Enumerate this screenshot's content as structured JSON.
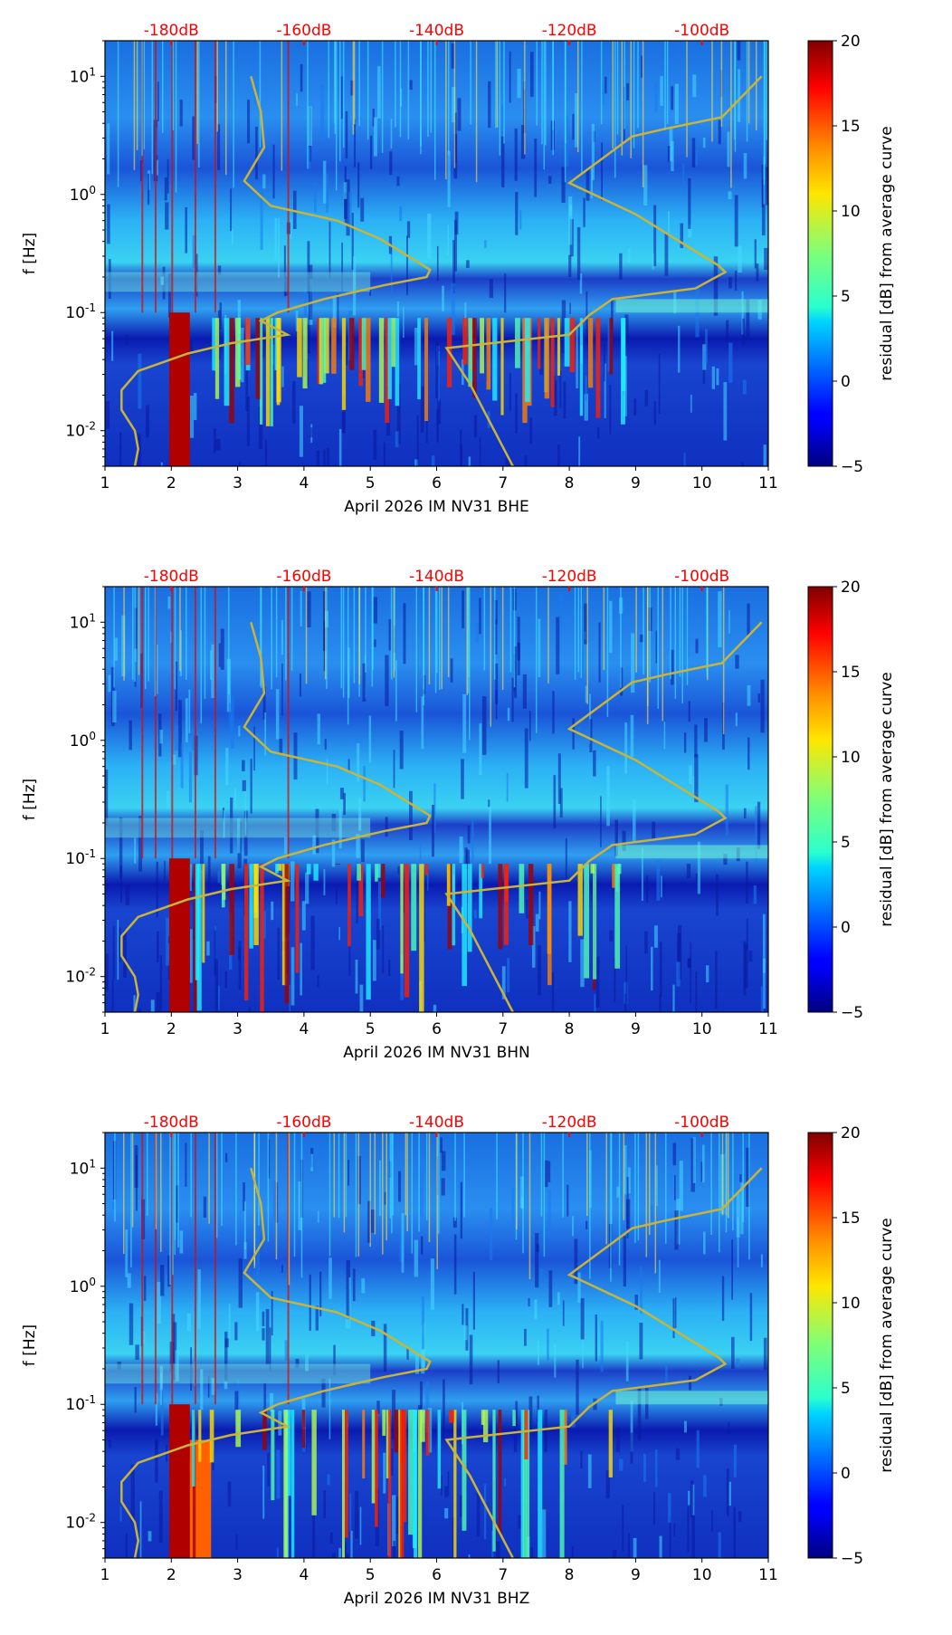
{
  "chart_data": [
    {
      "type": "heatmap",
      "title": "",
      "xlabel": "April 2026 IM NV31  BHE",
      "ylabel": "f [Hz]",
      "xlim": [
        1,
        11
      ],
      "ylim": [
        0.005,
        20
      ],
      "yscale": "log",
      "xticks": [
        "1",
        "2",
        "3",
        "4",
        "5",
        "6",
        "7",
        "8",
        "9",
        "10",
        "11"
      ],
      "yticks": [
        {
          "label": "10^1",
          "value": 10
        },
        {
          "label": "10^0",
          "value": 1
        },
        {
          "label": "10^-1",
          "value": 0.1
        },
        {
          "label": "10^-2",
          "value": 0.01
        }
      ],
      "top_axis_labels": [
        "-180dB",
        "-160dB",
        "-140dB",
        "-120dB",
        "-100dB"
      ],
      "top_axis_color": "#ff0000",
      "colorbar": {
        "label": "residual [dB] from average curve",
        "min": -5,
        "max": 20,
        "ticks": [
          "20",
          "15",
          "10",
          "5",
          "0",
          "−5"
        ],
        "colormap": "jet"
      },
      "curve_color": "#c8b43a",
      "curves": [
        {
          "name": "low-noise model",
          "points": [
            [
              3.2,
              10
            ],
            [
              3.35,
              5
            ],
            [
              3.4,
              2.5
            ],
            [
              3.1,
              1.3
            ],
            [
              3.5,
              0.8
            ],
            [
              4.5,
              0.6
            ],
            [
              5.15,
              0.42
            ],
            [
              5.9,
              0.23
            ],
            [
              5.85,
              0.2
            ],
            [
              5.2,
              0.17
            ],
            [
              4.3,
              0.13
            ],
            [
              3.6,
              0.1
            ],
            [
              3.35,
              0.085
            ],
            [
              3.75,
              0.065
            ],
            [
              2.9,
              0.055
            ],
            [
              2.25,
              0.045
            ],
            [
              1.5,
              0.032
            ],
            [
              1.25,
              0.022
            ],
            [
              1.25,
              0.015
            ],
            [
              1.45,
              0.01
            ],
            [
              1.5,
              0.007
            ],
            [
              1.45,
              0.005
            ]
          ]
        },
        {
          "name": "high-noise model",
          "points": [
            [
              10.9,
              10
            ],
            [
              10.3,
              4.5
            ],
            [
              9.45,
              3.6
            ],
            [
              8.95,
              3.1
            ],
            [
              8.0,
              1.25
            ],
            [
              9.0,
              0.68
            ],
            [
              10.25,
              0.25
            ],
            [
              10.35,
              0.22
            ],
            [
              9.9,
              0.16
            ],
            [
              8.65,
              0.13
            ],
            [
              8.3,
              0.095
            ],
            [
              8.0,
              0.065
            ],
            [
              6.15,
              0.05
            ],
            [
              6.5,
              0.025
            ],
            [
              7.15,
              0.005
            ]
          ]
        }
      ]
    },
    {
      "type": "heatmap",
      "title": "",
      "xlabel": "April 2026 IM NV31  BHN",
      "ylabel": "f [Hz]",
      "xlim": [
        1,
        11
      ],
      "ylim": [
        0.005,
        20
      ],
      "yscale": "log",
      "xticks": [
        "1",
        "2",
        "3",
        "4",
        "5",
        "6",
        "7",
        "8",
        "9",
        "10",
        "11"
      ],
      "yticks": [
        {
          "label": "10^1",
          "value": 10
        },
        {
          "label": "10^0",
          "value": 1
        },
        {
          "label": "10^-1",
          "value": 0.1
        },
        {
          "label": "10^-2",
          "value": 0.01
        }
      ],
      "top_axis_labels": [
        "-180dB",
        "-160dB",
        "-140dB",
        "-120dB",
        "-100dB"
      ],
      "top_axis_color": "#ff0000",
      "colorbar": {
        "label": "residual [dB] from average curve",
        "min": -5,
        "max": 20,
        "ticks": [
          "20",
          "15",
          "10",
          "5",
          "0",
          "−5"
        ],
        "colormap": "jet"
      },
      "curve_color": "#c8b43a",
      "curves": [
        {
          "name": "low-noise model",
          "points": [
            [
              3.2,
              10
            ],
            [
              3.35,
              5
            ],
            [
              3.4,
              2.5
            ],
            [
              3.1,
              1.3
            ],
            [
              3.5,
              0.8
            ],
            [
              4.5,
              0.6
            ],
            [
              5.15,
              0.42
            ],
            [
              5.9,
              0.23
            ],
            [
              5.85,
              0.2
            ],
            [
              5.2,
              0.17
            ],
            [
              4.3,
              0.13
            ],
            [
              3.6,
              0.1
            ],
            [
              3.35,
              0.085
            ],
            [
              3.75,
              0.065
            ],
            [
              2.9,
              0.055
            ],
            [
              2.25,
              0.045
            ],
            [
              1.5,
              0.032
            ],
            [
              1.25,
              0.022
            ],
            [
              1.25,
              0.015
            ],
            [
              1.45,
              0.01
            ],
            [
              1.5,
              0.007
            ],
            [
              1.45,
              0.005
            ]
          ]
        },
        {
          "name": "high-noise model",
          "points": [
            [
              10.9,
              10
            ],
            [
              10.3,
              4.5
            ],
            [
              9.45,
              3.6
            ],
            [
              8.95,
              3.1
            ],
            [
              8.0,
              1.25
            ],
            [
              9.0,
              0.68
            ],
            [
              10.25,
              0.25
            ],
            [
              10.35,
              0.22
            ],
            [
              9.9,
              0.16
            ],
            [
              8.65,
              0.13
            ],
            [
              8.3,
              0.095
            ],
            [
              8.0,
              0.065
            ],
            [
              6.15,
              0.05
            ],
            [
              6.5,
              0.025
            ],
            [
              7.15,
              0.005
            ]
          ]
        }
      ]
    },
    {
      "type": "heatmap",
      "title": "",
      "xlabel": "April 2026 IM NV31  BHZ",
      "ylabel": "f [Hz]",
      "xlim": [
        1,
        11
      ],
      "ylim": [
        0.005,
        20
      ],
      "yscale": "log",
      "xticks": [
        "1",
        "2",
        "3",
        "4",
        "5",
        "6",
        "7",
        "8",
        "9",
        "10",
        "11"
      ],
      "yticks": [
        {
          "label": "10^1",
          "value": 10
        },
        {
          "label": "10^0",
          "value": 1
        },
        {
          "label": "10^-1",
          "value": 0.1
        },
        {
          "label": "10^-2",
          "value": 0.01
        }
      ],
      "top_axis_labels": [
        "-180dB",
        "-160dB",
        "-140dB",
        "-120dB",
        "-100dB"
      ],
      "top_axis_color": "#ff0000",
      "colorbar": {
        "label": "residual [dB] from average curve",
        "min": -5,
        "max": 20,
        "ticks": [
          "20",
          "15",
          "10",
          "5",
          "0",
          "−5"
        ],
        "colormap": "jet"
      },
      "curve_color": "#c8b43a",
      "curves": [
        {
          "name": "low-noise model",
          "points": [
            [
              3.2,
              10
            ],
            [
              3.35,
              5
            ],
            [
              3.4,
              2.5
            ],
            [
              3.1,
              1.3
            ],
            [
              3.5,
              0.8
            ],
            [
              4.5,
              0.6
            ],
            [
              5.15,
              0.42
            ],
            [
              5.9,
              0.23
            ],
            [
              5.85,
              0.2
            ],
            [
              5.2,
              0.17
            ],
            [
              4.3,
              0.13
            ],
            [
              3.6,
              0.1
            ],
            [
              3.35,
              0.085
            ],
            [
              3.75,
              0.065
            ],
            [
              2.9,
              0.055
            ],
            [
              2.25,
              0.045
            ],
            [
              1.5,
              0.032
            ],
            [
              1.25,
              0.022
            ],
            [
              1.25,
              0.015
            ],
            [
              1.45,
              0.01
            ],
            [
              1.5,
              0.007
            ],
            [
              1.45,
              0.005
            ]
          ]
        },
        {
          "name": "high-noise model",
          "points": [
            [
              10.9,
              10
            ],
            [
              10.3,
              4.5
            ],
            [
              9.45,
              3.6
            ],
            [
              8.95,
              3.1
            ],
            [
              8.0,
              1.25
            ],
            [
              9.0,
              0.68
            ],
            [
              10.25,
              0.25
            ],
            [
              10.35,
              0.22
            ],
            [
              9.9,
              0.16
            ],
            [
              8.65,
              0.13
            ],
            [
              8.3,
              0.095
            ],
            [
              8.0,
              0.065
            ],
            [
              6.15,
              0.05
            ],
            [
              6.5,
              0.025
            ],
            [
              7.15,
              0.005
            ]
          ]
        }
      ]
    }
  ]
}
